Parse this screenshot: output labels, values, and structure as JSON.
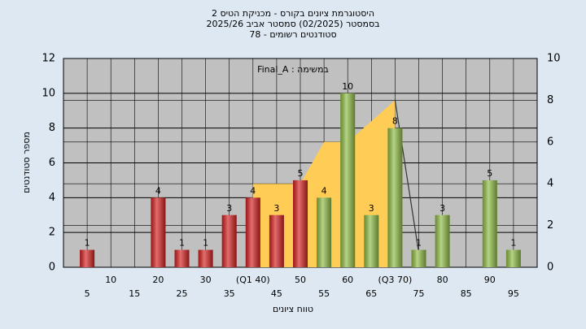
{
  "chart_data": {
    "type": "bar",
    "title": [
      "היסטוגרמת ציונים בקורס - מכניקת הטיס 2",
      "בסמסטר (02/2025) סמסטר אביב 2025/26",
      "סטודנטים רשומים - 78"
    ],
    "annotation": "במשימה : Final_A",
    "xlabel": "טווח ציונים",
    "ylabel": "מספר סטודנטים",
    "x": [
      5,
      10,
      15,
      20,
      25,
      30,
      35,
      40,
      45,
      50,
      55,
      60,
      65,
      70,
      75,
      80,
      85,
      90,
      95
    ],
    "values": [
      1,
      0,
      0,
      4,
      1,
      1,
      3,
      4,
      3,
      5,
      4,
      10,
      3,
      8,
      1,
      3,
      0,
      5,
      1
    ],
    "colors": [
      "#d42020",
      "#d42020",
      "#d42020",
      "#d42020",
      "#d42020",
      "#d42020",
      "#d42020",
      "#d42020",
      "#d42020",
      "#d42020",
      "#8fbc45",
      "#8fbc45",
      "#8fbc45",
      "#8fbc45",
      "#8fbc45",
      "#8fbc45",
      "#8fbc45",
      "#8fbc45",
      "#8fbc45"
    ],
    "xlim": [
      0,
      100
    ],
    "xticks": [
      5,
      10,
      15,
      20,
      25,
      30,
      35,
      {
        "value": 40,
        "label": "(Q1 40)"
      },
      45,
      50,
      55,
      60,
      65,
      {
        "value": 70,
        "label": "(Q3 70)"
      },
      75,
      80,
      85,
      90,
      95
    ],
    "ylim": [
      0,
      12
    ],
    "yticks": [
      0,
      2,
      4,
      6,
      8,
      10,
      12
    ],
    "y2lim": [
      0,
      10
    ],
    "y2ticks": [
      0,
      2,
      4,
      6,
      8,
      10
    ],
    "overlays": [
      {
        "type": "area",
        "axis": "y2",
        "color": "#ffcc55",
        "x": [
          40,
          50,
          55,
          60,
          65,
          70
        ],
        "values": [
          4,
          4,
          6,
          6,
          7,
          8
        ]
      },
      {
        "type": "line",
        "axis": "y2",
        "color": "#333333",
        "x": [
          70,
          75
        ],
        "values": [
          8,
          0.7
        ]
      }
    ],
    "grid": true
  }
}
